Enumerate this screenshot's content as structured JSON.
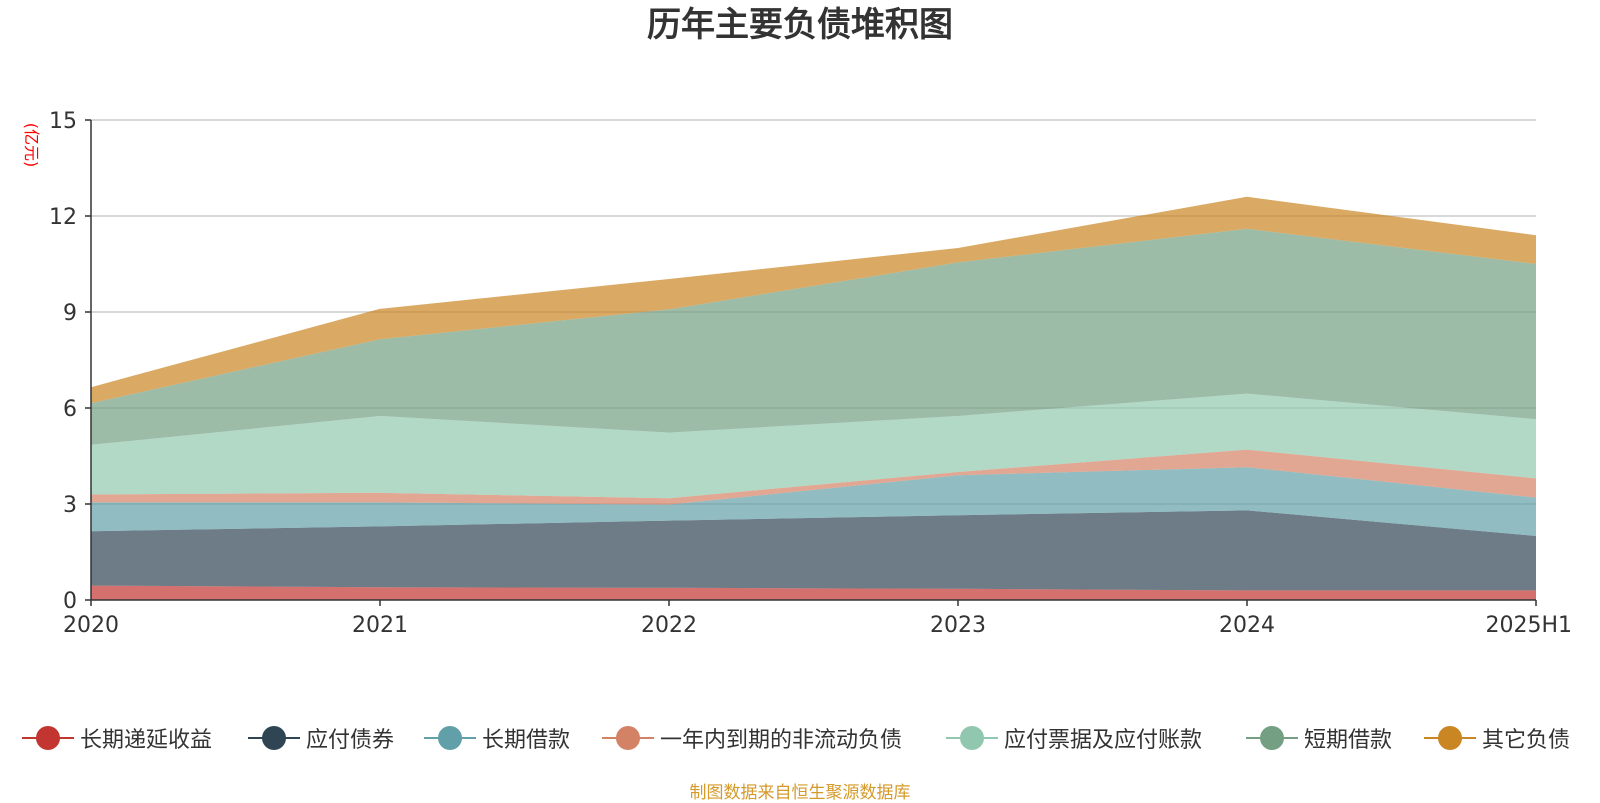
{
  "source_note": "制图数据来自恒生聚源数据库",
  "chart_data": {
    "type": "area",
    "stacked": true,
    "title": "历年主要负债堆积图",
    "ylabel": "(亿元)",
    "xlabel": "",
    "categories": [
      "2020",
      "2021",
      "2022",
      "2023",
      "2024",
      "2025H1"
    ],
    "ylim": [
      0,
      15
    ],
    "yticks": [
      0,
      3,
      6,
      9,
      12,
      15
    ],
    "grid": true,
    "legend_position": "bottom",
    "series": [
      {
        "name": "长期递延收益",
        "color": "#c23531",
        "values": [
          0.45,
          0.4,
          0.38,
          0.35,
          0.3,
          0.3
        ]
      },
      {
        "name": "应付债券",
        "color": "#2f4554",
        "values": [
          1.7,
          1.9,
          2.1,
          2.3,
          2.5,
          1.7
        ]
      },
      {
        "name": "长期借款",
        "color": "#61a0a8",
        "values": [
          0.9,
          0.75,
          0.5,
          1.25,
          1.35,
          1.2
        ]
      },
      {
        "name": "一年内到期的非流动负债",
        "color": "#d48265",
        "values": [
          0.25,
          0.3,
          0.2,
          0.1,
          0.55,
          0.6
        ]
      },
      {
        "name": "应付票据及应付账款",
        "color": "#91c7ae",
        "values": [
          1.55,
          2.4,
          2.05,
          1.75,
          1.75,
          1.85
        ]
      },
      {
        "name": "短期借款",
        "color": "#749f83",
        "values": [
          1.3,
          2.4,
          3.85,
          4.8,
          5.15,
          4.85
        ]
      },
      {
        "name": "其它负债",
        "color": "#ca8622",
        "values": [
          0.5,
          0.95,
          0.95,
          0.45,
          1.0,
          0.9
        ]
      }
    ]
  }
}
